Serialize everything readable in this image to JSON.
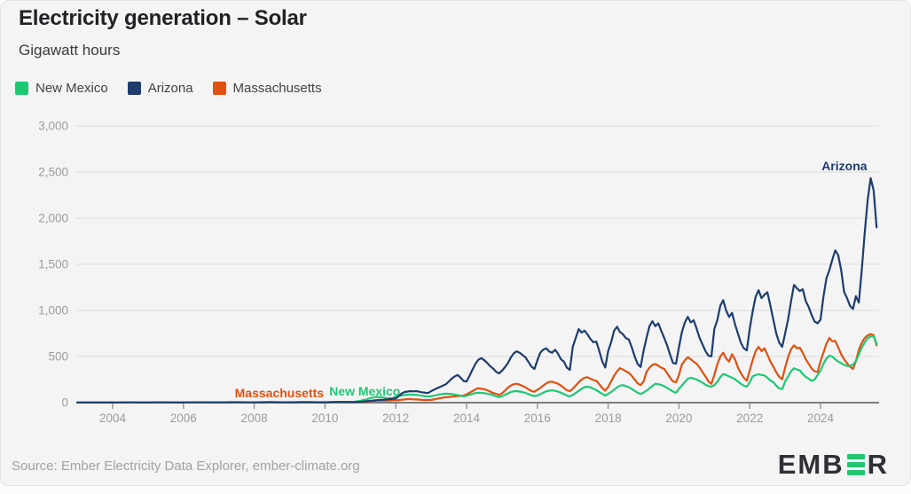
{
  "page": {
    "title": "Electricity generation – Solar",
    "subtitle": "Gigawatt hours"
  },
  "legend": [
    {
      "label": "New Mexico",
      "color": "#1ec873"
    },
    {
      "label": "Arizona",
      "color": "#1e3c6d"
    },
    {
      "label": "Massachusetts",
      "color": "#e0500f"
    }
  ],
  "footer": {
    "source": "Source: Ember Electricity Data Explorer, ember-climate.org",
    "logo_pre": "EMB",
    "logo_post": "R"
  },
  "chart_data": {
    "type": "line",
    "title": "Electricity generation – Solar",
    "xlabel": "",
    "ylabel": "Gigawatt hours",
    "ylim": [
      0,
      3000
    ],
    "yticks": [
      0,
      500,
      1000,
      1500,
      2000,
      2500,
      3000
    ],
    "xticks": [
      2004,
      2006,
      2008,
      2010,
      2012,
      2014,
      2016,
      2018,
      2020,
      2022,
      2024
    ],
    "x_start_year": 2003,
    "points_per_year": 12,
    "grid": true,
    "legend_position": "top-left",
    "axis_color": "#7e7e80",
    "grid_color": "#dcdcdd",
    "tick_text_color": "#9c9c9e",
    "series": [
      {
        "name": "Massachusetts",
        "color": "#e0500f",
        "values": [
          1,
          1,
          1,
          1,
          1,
          1,
          1,
          1,
          1,
          1,
          1,
          1,
          1,
          1,
          1,
          1,
          1,
          1,
          1,
          1,
          1,
          1,
          1,
          1,
          1,
          1,
          1,
          1,
          1,
          1,
          1,
          1,
          1,
          1,
          1,
          1,
          1,
          1,
          1,
          1,
          2,
          2,
          2,
          2,
          1,
          1,
          1,
          1,
          1,
          1,
          1,
          2,
          2,
          2,
          2,
          2,
          2,
          1,
          1,
          1,
          1,
          1,
          2,
          2,
          2,
          3,
          3,
          3,
          2,
          2,
          2,
          2,
          2,
          2,
          3,
          3,
          4,
          4,
          4,
          4,
          3,
          3,
          3,
          3,
          3,
          4,
          5,
          6,
          7,
          8,
          8,
          8,
          7,
          6,
          6,
          7,
          8,
          10,
          12,
          15,
          18,
          20,
          22,
          23,
          22,
          22,
          23,
          25,
          25,
          28,
          32,
          35,
          38,
          38,
          36,
          35,
          33,
          30,
          28,
          28,
          30,
          35,
          42,
          48,
          55,
          58,
          62,
          65,
          68,
          70,
          72,
          78,
          90,
          108,
          125,
          145,
          157,
          150,
          145,
          135,
          120,
          105,
          95,
          85,
          100,
          130,
          163,
          185,
          200,
          205,
          195,
          180,
          165,
          145,
          125,
          118,
          140,
          160,
          185,
          210,
          225,
          228,
          215,
          205,
          185,
          160,
          135,
          125,
          150,
          185,
          221,
          250,
          270,
          276,
          260,
          245,
          237,
          200,
          160,
          130,
          170,
          230,
          291,
          340,
          374,
          360,
          340,
          323,
          290,
          250,
          210,
          189,
          230,
          333,
          380,
          410,
          419,
          400,
          380,
          365,
          320,
          270,
          230,
          221,
          300,
          413,
          460,
          493,
          470,
          445,
          420,
          380,
          330,
          285,
          230,
          205,
          300,
          413,
          500,
          541,
          480,
          445,
          525,
          470,
          381,
          320,
          270,
          237,
          350,
          461,
          560,
          605,
          560,
          589,
          520,
          445,
          390,
          330,
          280,
          253,
          380,
          493,
          580,
          621,
          590,
          595,
          540,
          470,
          420,
          370,
          340,
          333,
          450,
          541,
          640,
          701,
          665,
          669,
          600,
          525,
          470,
          429,
          390,
          365,
          450,
          573,
          650,
          701,
          730,
          742,
          733,
          621
        ]
      },
      {
        "name": "New Mexico",
        "color": "#1ec873",
        "values": [
          1,
          1,
          1,
          1,
          1,
          1,
          1,
          1,
          1,
          1,
          1,
          1,
          1,
          1,
          1,
          1,
          1,
          1,
          1,
          1,
          1,
          1,
          1,
          1,
          1,
          1,
          1,
          1,
          2,
          2,
          2,
          2,
          1,
          1,
          1,
          1,
          1,
          1,
          2,
          2,
          2,
          2,
          2,
          2,
          2,
          1,
          1,
          1,
          1,
          2,
          2,
          2,
          3,
          3,
          3,
          3,
          2,
          2,
          2,
          2,
          2,
          2,
          2,
          3,
          3,
          3,
          3,
          3,
          3,
          2,
          2,
          2,
          2,
          2,
          3,
          3,
          4,
          4,
          4,
          4,
          3,
          3,
          3,
          3,
          3,
          4,
          5,
          6,
          7,
          8,
          8,
          8,
          8,
          9,
          10,
          14,
          20,
          28,
          35,
          45,
          55,
          60,
          62,
          60,
          55,
          50,
          48,
          50,
          67,
          72,
          78,
          83,
          86,
          88,
          86,
          84,
          80,
          75,
          70,
          65,
          70,
          76,
          83,
          90,
          95,
          97,
          95,
          92,
          88,
          82,
          75,
          68,
          75,
          85,
          95,
          104,
          108,
          106,
          102,
          98,
          90,
          80,
          68,
          60,
          70,
          85,
          100,
          115,
          123,
          125,
          120,
          114,
          105,
          92,
          80,
          72,
          77,
          92,
          108,
          122,
          130,
          134,
          128,
          120,
          108,
          92,
          78,
          67,
          85,
          105,
          128,
          150,
          168,
          173,
          165,
          152,
          135,
          115,
          95,
          77,
          95,
          115,
          140,
          165,
          185,
          189,
          180,
          168,
          148,
          128,
          108,
          93,
          110,
          130,
          155,
          182,
          205,
          200,
          192,
          178,
          160,
          140,
          120,
          108,
          150,
          185,
          225,
          260,
          269,
          262,
          250,
          235,
          215,
          195,
          180,
          173,
          190,
          225,
          275,
          310,
          300,
          285,
          270,
          253,
          230,
          205,
          185,
          173,
          220,
          285,
          300,
          307,
          300,
          295,
          270,
          240,
          221,
          185,
          155,
          147,
          230,
          285,
          340,
          372,
          360,
          349,
          310,
          280,
          260,
          237,
          250,
          300,
          349,
          420,
          480,
          509,
          500,
          470,
          445,
          429,
          410,
          397,
          400,
          413,
          450,
          525,
          600,
          653,
          700,
          717,
          723,
          637
        ]
      },
      {
        "name": "Arizona",
        "color": "#1e3c6d",
        "values": [
          2,
          2,
          2,
          2,
          2,
          2,
          2,
          2,
          2,
          2,
          2,
          2,
          2,
          2,
          2,
          2,
          3,
          3,
          3,
          3,
          2,
          2,
          2,
          2,
          2,
          2,
          3,
          3,
          3,
          3,
          3,
          3,
          3,
          2,
          2,
          2,
          2,
          3,
          3,
          3,
          4,
          4,
          4,
          4,
          3,
          3,
          3,
          3,
          3,
          3,
          4,
          4,
          5,
          5,
          5,
          5,
          4,
          4,
          3,
          3,
          3,
          4,
          4,
          5,
          5,
          6,
          6,
          5,
          5,
          4,
          4,
          4,
          4,
          4,
          5,
          5,
          6,
          6,
          6,
          6,
          5,
          5,
          4,
          4,
          5,
          5,
          6,
          7,
          8,
          8,
          8,
          8,
          7,
          7,
          6,
          8,
          10,
          12,
          15,
          18,
          22,
          25,
          28,
          30,
          32,
          35,
          38,
          42,
          45,
          70,
          100,
          115,
          120,
          125,
          122,
          125,
          118,
          112,
          108,
          105,
          125,
          140,
          157,
          170,
          185,
          200,
          230,
          262,
          285,
          300,
          270,
          235,
          230,
          290,
          360,
          420,
          465,
          483,
          460,
          430,
          395,
          370,
          335,
          317,
          345,
          385,
          429,
          490,
          535,
          557,
          540,
          515,
          490,
          440,
          390,
          365,
          460,
          541,
          575,
          589,
          555,
          541,
          573,
          530,
          470,
          445,
          380,
          355,
          605,
          700,
          797,
          760,
          781,
          740,
          690,
          655,
          662,
          560,
          450,
          381,
          560,
          653,
          780,
          823,
          765,
          742,
          700,
          685,
          600,
          500,
          420,
          387,
          560,
          701,
          830,
          883,
          829,
          861,
          780,
          701,
          620,
          520,
          430,
          422,
          600,
          765,
          870,
          931,
          870,
          893,
          800,
          701,
          630,
          560,
          510,
          502,
          800,
          893,
          1050,
          1111,
          1000,
          930,
          973,
          850,
          749,
          650,
          590,
          566,
          800,
          989,
          1150,
          1219,
          1133,
          1170,
          1197,
          1050,
          900,
          750,
          650,
          605,
          750,
          900,
          1100,
          1277,
          1240,
          1210,
          1229,
          1100,
          1037,
          950,
          880,
          861,
          900,
          1149,
          1350,
          1437,
          1550,
          1651,
          1600,
          1437,
          1200,
          1133,
          1050,
          1015,
          1155,
          1085,
          1450,
          1850,
          2200,
          2435,
          2300,
          1901
        ]
      }
    ],
    "annotations": [
      {
        "text": "Massachusetts",
        "year": 2007.45,
        "value": 60,
        "color": "#e0500f"
      },
      {
        "text": "New Mexico",
        "year": 2010.12,
        "value": 75,
        "color": "#1ec873"
      },
      {
        "text": "Arizona",
        "year": 2024.03,
        "value": 2520,
        "color": "#1e3c6d"
      }
    ]
  }
}
